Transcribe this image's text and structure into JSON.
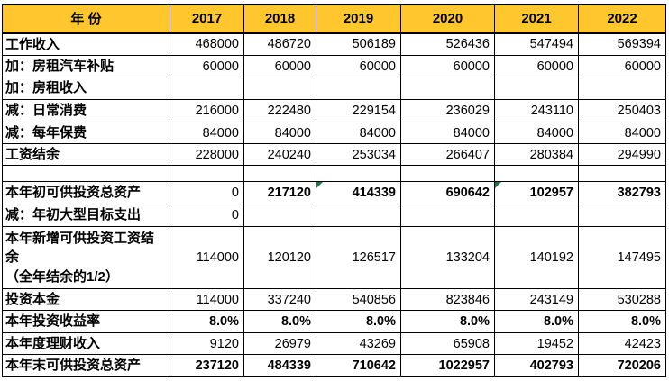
{
  "table": {
    "header": {
      "label": "年 份",
      "years": [
        "2017",
        "2018",
        "2019",
        "2020",
        "2021",
        "2022"
      ]
    },
    "rows": [
      {
        "id": "work-income",
        "label": "工作收入",
        "values": [
          "468000",
          "486720",
          "506189",
          "526436",
          "547494",
          "569394"
        ]
      },
      {
        "id": "rent-car-subsidy",
        "label": "加：房租汽车补贴",
        "values": [
          "60000",
          "60000",
          "60000",
          "60000",
          "60000",
          "60000"
        ]
      },
      {
        "id": "rent-income",
        "label": "加：房租收入",
        "values": [
          "",
          "",
          "",
          "",
          "",
          ""
        ]
      },
      {
        "id": "daily-consumption",
        "label": "减：日常消费",
        "values": [
          "216000",
          "222480",
          "229154",
          "236029",
          "243110",
          "250403"
        ]
      },
      {
        "id": "annual-premium",
        "label": "减：每年保费",
        "values": [
          "84000",
          "84000",
          "84000",
          "84000",
          "84000",
          "84000"
        ]
      },
      {
        "id": "salary-surplus",
        "label": "工资结余",
        "values": [
          "228000",
          "240240",
          "253034",
          "266407",
          "280384",
          "294990"
        ]
      },
      {
        "id": "spacer",
        "label": "",
        "values": [
          "",
          "",
          "",
          "",
          "",
          ""
        ]
      },
      {
        "id": "year-begin-investable-assets",
        "label": "本年初可供投资总资产",
        "label_class": "orange-label",
        "values_class": "orange-bold",
        "plain_value_indices": [
          0
        ],
        "flag_indices": [
          2,
          4
        ],
        "values": [
          "0",
          "217120",
          "414339",
          "690642",
          "102957",
          "382793"
        ]
      },
      {
        "id": "year-begin-goal-expense",
        "label": "减：年初大型目标支出",
        "values": [
          "0",
          "",
          "",
          "",
          "",
          ""
        ]
      },
      {
        "id": "new-investable-salary-surplus",
        "label": "本年新增可供投资工资结\n余\n（全年结余的1/2）",
        "values": [
          "114000",
          "120120",
          "126517",
          "133204",
          "140192",
          "147495"
        ]
      },
      {
        "id": "investment-principal",
        "label": "投资本金",
        "values": [
          "114000",
          "337240",
          "540856",
          "823846",
          "243149",
          "530288"
        ]
      },
      {
        "id": "investment-return-rate",
        "label": "本年投资收益率",
        "values_class": "blue-bold",
        "values": [
          "8.0%",
          "8.0%",
          "8.0%",
          "8.0%",
          "8.0%",
          "8.0%"
        ]
      },
      {
        "id": "wealth-management-income",
        "label": "本年度理财收入",
        "values": [
          "9120",
          "26979",
          "43269",
          "65908",
          "19452",
          "42423"
        ]
      },
      {
        "id": "year-end-investable-assets",
        "label": "本年末可供投资总资产",
        "values_class": "orange-bold",
        "values": [
          "237120",
          "484339",
          "710642",
          "1022957",
          "402793",
          "720206"
        ]
      }
    ],
    "colors": {
      "header_bg": "#FFC62E",
      "orange": "#EE7A25",
      "blue": "#3A3AA6",
      "flag_green": "#217346",
      "border": "#000000"
    }
  }
}
